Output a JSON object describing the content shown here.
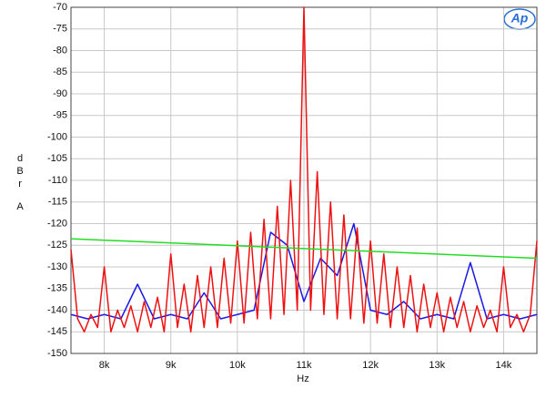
{
  "chart_data": {
    "type": "line",
    "logo": "Ap",
    "x_label": "Hz",
    "y_label": "dBr",
    "y_label_unit": "A",
    "xlim": [
      7500,
      14500
    ],
    "ylim": [
      -150,
      -70
    ],
    "xticks": [
      {
        "value": 8000,
        "label": "8k"
      },
      {
        "value": 9000,
        "label": "9k"
      },
      {
        "value": 10000,
        "label": "10k"
      },
      {
        "value": 11000,
        "label": "11k"
      },
      {
        "value": 12000,
        "label": "12k"
      },
      {
        "value": 13000,
        "label": "13k"
      },
      {
        "value": 14000,
        "label": "14k"
      }
    ],
    "yticks": [
      -70,
      -75,
      -80,
      -85,
      -90,
      -95,
      -100,
      -105,
      -110,
      -115,
      -120,
      -125,
      -130,
      -135,
      -140,
      -145,
      -150
    ],
    "grid": true,
    "series": [
      {
        "color": "#1a1ae6",
        "x": [
          7500,
          7750,
          8000,
          8250,
          8500,
          8750,
          9000,
          9250,
          9500,
          9750,
          10000,
          10250,
          10500,
          10750,
          11000,
          11250,
          11500,
          11750,
          12000,
          12250,
          12500,
          12750,
          13000,
          13250,
          13500,
          13750,
          14000,
          14250,
          14500
        ],
        "values": [
          -141,
          -142,
          -141,
          -142,
          -134,
          -142,
          -141,
          -142,
          -136,
          -142,
          -141,
          -140,
          -122,
          -125,
          -138,
          -128,
          -132,
          -120,
          -140,
          -141,
          -138,
          -142,
          -141,
          -142,
          -129,
          -142,
          -141,
          -142,
          -141
        ]
      },
      {
        "color": "#ee1111",
        "x": [
          7500,
          7600,
          7700,
          7800,
          7900,
          8000,
          8100,
          8200,
          8300,
          8400,
          8500,
          8600,
          8700,
          8800,
          8900,
          9000,
          9100,
          9200,
          9300,
          9400,
          9500,
          9600,
          9700,
          9800,
          9900,
          10000,
          10100,
          10200,
          10300,
          10400,
          10500,
          10600,
          10700,
          10800,
          10900,
          11000,
          11100,
          11200,
          11300,
          11400,
          11500,
          11600,
          11700,
          11800,
          11900,
          12000,
          12100,
          12200,
          12300,
          12400,
          12500,
          12600,
          12700,
          12800,
          12900,
          13000,
          13100,
          13200,
          13300,
          13400,
          13500,
          13600,
          13700,
          13800,
          13900,
          14000,
          14100,
          14200,
          14300,
          14400,
          14500
        ],
        "values": [
          -126,
          -142,
          -145,
          -141,
          -144,
          -130,
          -145,
          -140,
          -144,
          -139,
          -145,
          -138,
          -144,
          -137,
          -145,
          -127,
          -144,
          -134,
          -145,
          -132,
          -144,
          -130,
          -144,
          -128,
          -143,
          -124,
          -143,
          -122,
          -142,
          -119,
          -142,
          -116,
          -141,
          -110,
          -140,
          -70,
          -140,
          -108,
          -141,
          -115,
          -142,
          -118,
          -142,
          -121,
          -143,
          -124,
          -143,
          -127,
          -144,
          -130,
          -144,
          -132,
          -145,
          -134,
          -144,
          -136,
          -145,
          -137,
          -144,
          -138,
          -145,
          -139,
          -144,
          -140,
          -145,
          -130,
          -144,
          -141,
          -145,
          -141,
          -124
        ]
      },
      {
        "color": "#22dd22",
        "x": [
          7500,
          14500
        ],
        "values": [
          -123.5,
          -128
        ]
      }
    ]
  }
}
